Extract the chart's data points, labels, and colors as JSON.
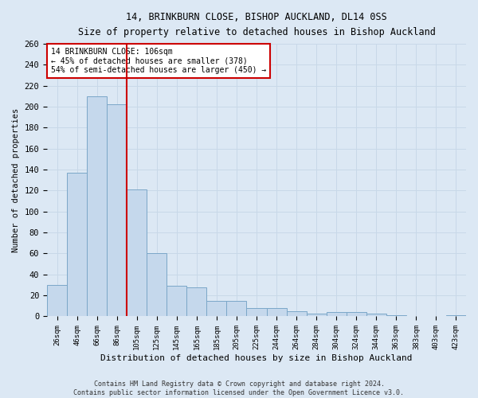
{
  "title1": "14, BRINKBURN CLOSE, BISHOP AUCKLAND, DL14 0SS",
  "title2": "Size of property relative to detached houses in Bishop Auckland",
  "xlabel": "Distribution of detached houses by size in Bishop Auckland",
  "ylabel": "Number of detached properties",
  "categories": [
    "26sqm",
    "46sqm",
    "66sqm",
    "86sqm",
    "105sqm",
    "125sqm",
    "145sqm",
    "165sqm",
    "185sqm",
    "205sqm",
    "225sqm",
    "244sqm",
    "264sqm",
    "284sqm",
    "304sqm",
    "324sqm",
    "344sqm",
    "363sqm",
    "383sqm",
    "403sqm",
    "423sqm"
  ],
  "values": [
    30,
    137,
    210,
    202,
    121,
    60,
    29,
    28,
    15,
    15,
    8,
    8,
    5,
    3,
    4,
    4,
    3,
    1,
    0,
    0,
    1
  ],
  "bar_color": "#c5d8ec",
  "bar_edge_color": "#7ba7c8",
  "vline_x": 3.5,
  "vline_color": "#cc0000",
  "annotation_text": "14 BRINKBURN CLOSE: 106sqm\n← 45% of detached houses are smaller (378)\n54% of semi-detached houses are larger (450) →",
  "annotation_box_color": "white",
  "annotation_box_edge": "#cc0000",
  "grid_color": "#c8d8e8",
  "bg_color": "#dce8f4",
  "ylim": [
    0,
    260
  ],
  "yticks": [
    0,
    20,
    40,
    60,
    80,
    100,
    120,
    140,
    160,
    180,
    200,
    220,
    240,
    260
  ],
  "footer1": "Contains HM Land Registry data © Crown copyright and database right 2024.",
  "footer2": "Contains public sector information licensed under the Open Government Licence v3.0."
}
